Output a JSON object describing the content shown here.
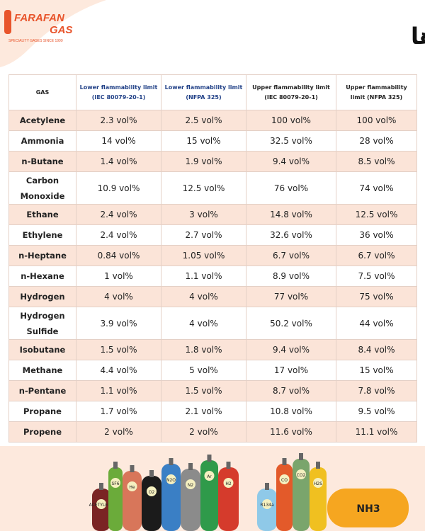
{
  "header": {
    "logo": "FARAFAN GAS",
    "logo_line1": "FARAFAN",
    "logo_line2": "GAS",
    "tagline": "SPECIALITY GASES SINCE 1999",
    "title": "جدول LEL گازها"
  },
  "table": {
    "columns": [
      "GAS",
      "Lower flammability limit (IEC 80079-20-1)",
      "Lower flammability limit (NFPA 325)",
      "Upper flammability limit (IEC 80079-20-1)",
      "Upper flammability limit (NFPA 325)"
    ],
    "rows": [
      [
        "Acetylene",
        "2.3 vol%",
        "2.5 vol%",
        "100 vol%",
        "100 vol%"
      ],
      [
        "Ammonia",
        "14 vol%",
        "15 vol%",
        "32.5 vol%",
        "28 vol%"
      ],
      [
        "n-Butane",
        "1.4 vol%",
        "1.9 vol%",
        "9.4 vol%",
        "8.5 vol%"
      ],
      [
        "Carbon Monoxide",
        "10.9 vol%",
        "12.5 vol%",
        "76 vol%",
        "74 vol%"
      ],
      [
        "Ethane",
        "2.4 vol%",
        "3 vol%",
        "14.8 vol%",
        "12.5 vol%"
      ],
      [
        "Ethylene",
        "2.4 vol%",
        "2.7 vol%",
        "32.6 vol%",
        "36 vol%"
      ],
      [
        "n-Heptane",
        "0.84 vol%",
        "1.05 vol%",
        "6.7 vol%",
        "6.7 vol%"
      ],
      [
        "n-Hexane",
        "1 vol%",
        "1.1 vol%",
        "8.9 vol%",
        "7.5 vol%"
      ],
      [
        "Hydrogen",
        "4 vol%",
        "4 vol%",
        "77 vol%",
        "75 vol%"
      ],
      [
        "Hydrogen Sulfide",
        "3.9 vol%",
        "4 vol%",
        "50.2 vol%",
        "44 vol%"
      ],
      [
        "Isobutane",
        "1.5 vol%",
        "1.8 vol%",
        "9.4 vol%",
        "8.4 vol%"
      ],
      [
        "Methane",
        "4.4 vol%",
        "5 vol%",
        "17 vol%",
        "15 vol%"
      ],
      [
        "n-Pentane",
        "1.1 vol%",
        "1.5 vol%",
        "8.7 vol%",
        "7.8 vol%"
      ],
      [
        "Propane",
        "1.7 vol%",
        "2.1 vol%",
        "10.8 vol%",
        "9.5 vol%"
      ],
      [
        "Propene",
        "2 vol%",
        "2 vol%",
        "11.6 vol%",
        "11.1 vol%"
      ]
    ]
  },
  "cylinders": [
    "ACETYLENE",
    "SF6",
    "He",
    "O2",
    "N2O",
    "N2",
    "Ar",
    "H2",
    "R134a",
    "CO",
    "CO2",
    "H2S",
    "NH3"
  ]
}
